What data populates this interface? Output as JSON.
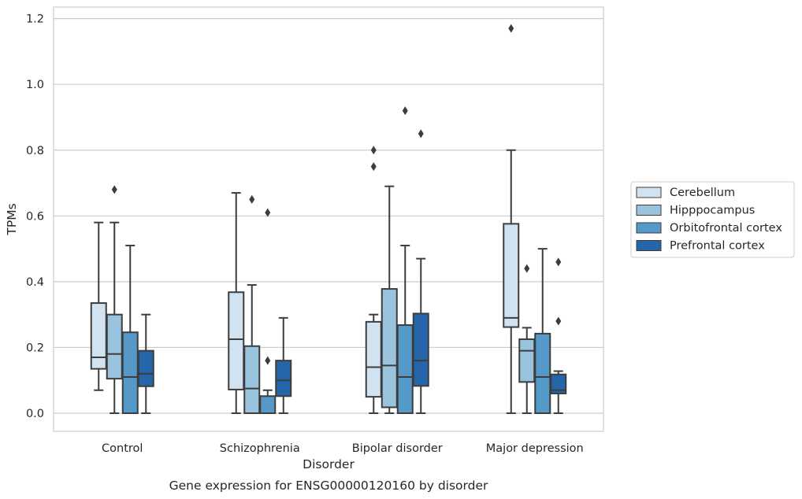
{
  "caption": "Gene expression for ENSG00000120160 by disorder",
  "chart_data": {
    "type": "box",
    "xlabel": "Disorder",
    "ylabel": "TPMs",
    "ylim": [
      -0.055,
      1.235
    ],
    "yticks": [
      0.0,
      0.2,
      0.4,
      0.6,
      0.8,
      1.0,
      1.2
    ],
    "ytick_labels": [
      "0.0",
      "0.2",
      "0.4",
      "0.6",
      "0.8",
      "1.0",
      "1.2"
    ],
    "grid": "horizontal",
    "legend_position": "right",
    "categories": [
      "Control",
      "Schizophrenia",
      "Bipolar disorder",
      "Major depression"
    ],
    "series": [
      {
        "name": "Cerebellum",
        "color": "#d1e2f0",
        "boxes": [
          {
            "q1": 0.135,
            "median": 0.17,
            "q3": 0.335,
            "whislo": 0.07,
            "whishi": 0.58,
            "fliers": []
          },
          {
            "q1": 0.072,
            "median": 0.225,
            "q3": 0.368,
            "whislo": 0.0,
            "whishi": 0.67,
            "fliers": []
          },
          {
            "q1": 0.05,
            "median": 0.14,
            "q3": 0.278,
            "whislo": 0.0,
            "whishi": 0.3,
            "fliers": [
              0.75,
              0.8
            ]
          },
          {
            "q1": 0.262,
            "median": 0.29,
            "q3": 0.576,
            "whislo": 0.0,
            "whishi": 0.8,
            "fliers": [
              1.17
            ]
          }
        ]
      },
      {
        "name": "Hipppocampus",
        "color": "#9ac4de",
        "boxes": [
          {
            "q1": 0.105,
            "median": 0.18,
            "q3": 0.3,
            "whislo": 0.0,
            "whishi": 0.58,
            "fliers": [
              0.68
            ]
          },
          {
            "q1": 0.0,
            "median": 0.075,
            "q3": 0.204,
            "whislo": 0.0,
            "whishi": 0.39,
            "fliers": [
              0.65
            ]
          },
          {
            "q1": 0.018,
            "median": 0.145,
            "q3": 0.378,
            "whislo": 0.0,
            "whishi": 0.69,
            "fliers": []
          },
          {
            "q1": 0.095,
            "median": 0.19,
            "q3": 0.225,
            "whislo": 0.0,
            "whishi": 0.26,
            "fliers": [
              0.44
            ]
          }
        ]
      },
      {
        "name": "Orbitofrontal cortex",
        "color": "#5599c8",
        "boxes": [
          {
            "q1": 0.0,
            "median": 0.11,
            "q3": 0.246,
            "whislo": 0.0,
            "whishi": 0.51,
            "fliers": []
          },
          {
            "q1": 0.0,
            "median": 0.0,
            "q3": 0.052,
            "whislo": 0.0,
            "whishi": 0.07,
            "fliers": [
              0.16,
              0.61
            ]
          },
          {
            "q1": 0.0,
            "median": 0.11,
            "q3": 0.268,
            "whislo": 0.0,
            "whishi": 0.51,
            "fliers": [
              0.92
            ]
          },
          {
            "q1": 0.0,
            "median": 0.11,
            "q3": 0.242,
            "whislo": 0.0,
            "whishi": 0.5,
            "fliers": []
          }
        ]
      },
      {
        "name": "Prefrontal cortex",
        "color": "#2466a9",
        "boxes": [
          {
            "q1": 0.082,
            "median": 0.12,
            "q3": 0.19,
            "whislo": 0.0,
            "whishi": 0.3,
            "fliers": []
          },
          {
            "q1": 0.052,
            "median": 0.1,
            "q3": 0.16,
            "whislo": 0.0,
            "whishi": 0.29,
            "fliers": []
          },
          {
            "q1": 0.083,
            "median": 0.16,
            "q3": 0.303,
            "whislo": 0.0,
            "whishi": 0.47,
            "fliers": [
              0.85
            ]
          },
          {
            "q1": 0.06,
            "median": 0.07,
            "q3": 0.118,
            "whislo": 0.0,
            "whishi": 0.128,
            "fliers": [
              0.28,
              0.46
            ]
          }
        ]
      }
    ]
  }
}
